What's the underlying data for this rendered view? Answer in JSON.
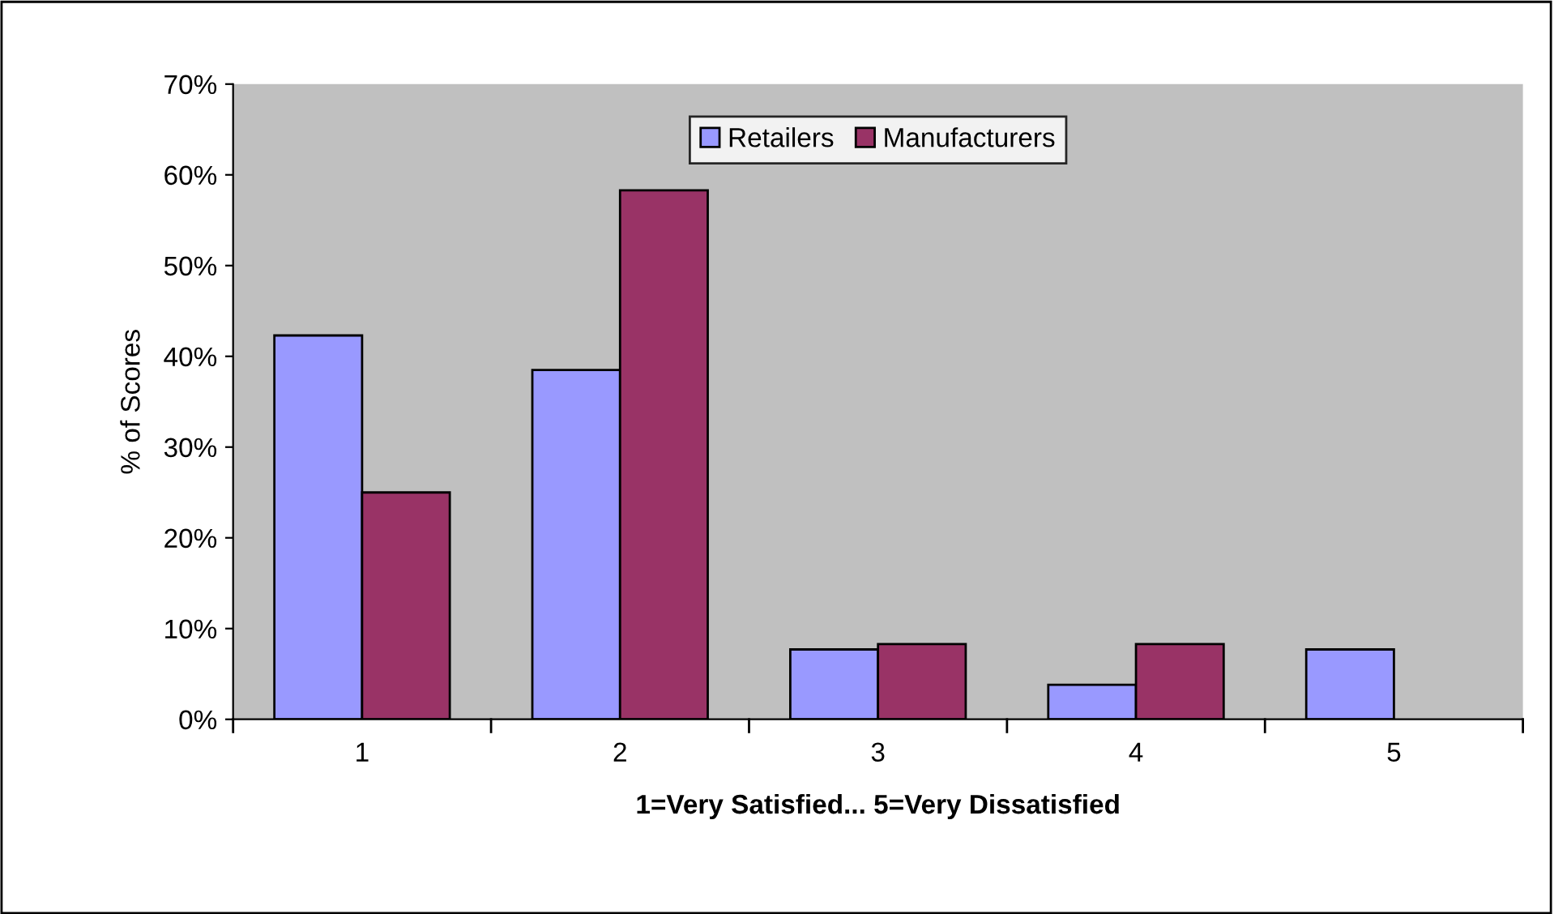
{
  "chart_data": {
    "type": "bar",
    "xlabel": "1=Very Satisfied... 5=Very Dissatisfied",
    "ylabel": "% of Scores",
    "categories": [
      "1",
      "2",
      "3",
      "4",
      "5"
    ],
    "series": [
      {
        "name": "Retailers",
        "color": "#9999ff",
        "values": [
          42.3,
          38.5,
          7.7,
          3.8,
          7.7
        ]
      },
      {
        "name": "Manufacturers",
        "color": "#993366",
        "values": [
          25.0,
          58.3,
          8.3,
          8.3,
          0
        ]
      }
    ],
    "ylim": [
      0,
      70
    ],
    "yticks": [
      {
        "value": 0,
        "label": "0%"
      },
      {
        "value": 10,
        "label": "10%"
      },
      {
        "value": 20,
        "label": "20%"
      },
      {
        "value": 30,
        "label": "30%"
      },
      {
        "value": 40,
        "label": "40%"
      },
      {
        "value": 50,
        "label": "50%"
      },
      {
        "value": 60,
        "label": "60%"
      },
      {
        "value": 70,
        "label": "70%"
      }
    ],
    "grid": false,
    "legend": "top"
  }
}
